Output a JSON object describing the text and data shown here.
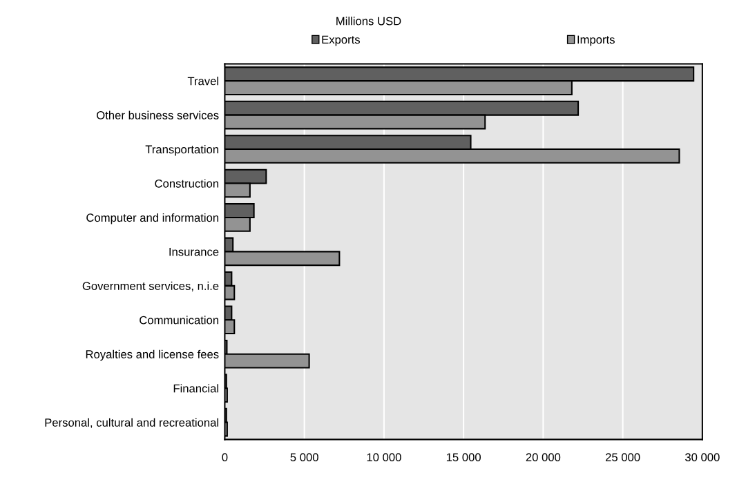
{
  "chart_data": {
    "type": "bar",
    "orientation": "horizontal",
    "title": "Millions USD",
    "categories": [
      "Travel",
      "Other business services",
      "Transportation",
      "Construction",
      "Computer and information",
      "Insurance",
      "Government services, n.i.e",
      "Communication",
      "Royalties and license fees",
      "Financial",
      "Personal, cultural and recreational"
    ],
    "series": [
      {
        "name": "Exports",
        "color": "#606060",
        "values": [
          29450,
          22200,
          15450,
          2600,
          1830,
          510,
          430,
          430,
          130,
          100,
          100
        ]
      },
      {
        "name": "Imports",
        "color": "#939393",
        "values": [
          21800,
          16350,
          28550,
          1580,
          1580,
          7200,
          600,
          600,
          5300,
          150,
          150
        ]
      }
    ],
    "xlim": [
      0,
      30000
    ],
    "xticks": [
      0,
      {
        "value": 5000,
        "label": "5 000"
      },
      {
        "value": 10000,
        "label": "10 000"
      },
      {
        "value": 15000,
        "label": "15 000"
      },
      {
        "value": 20000,
        "label": "20 000"
      },
      {
        "value": 25000,
        "label": "25 000"
      },
      {
        "value": 30000,
        "label": "30 000"
      }
    ],
    "grid": "x",
    "legend": "top"
  }
}
